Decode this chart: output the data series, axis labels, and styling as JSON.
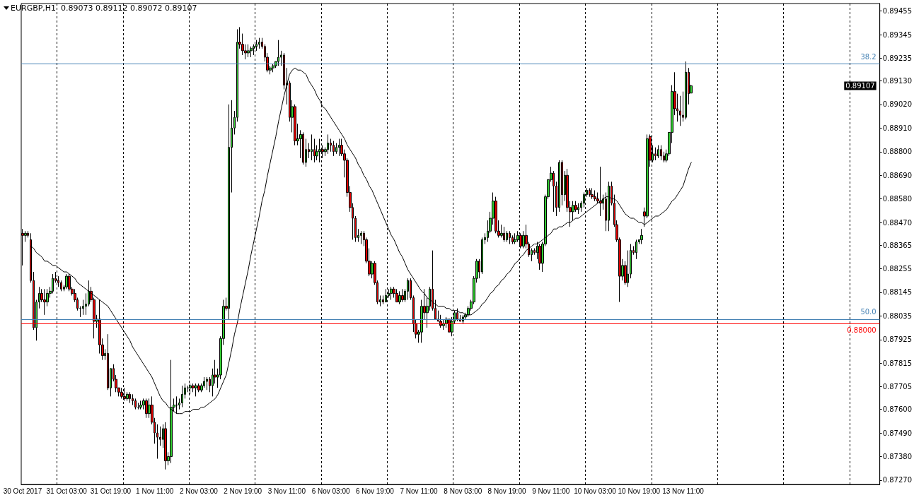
{
  "chart_data": {
    "type": "candlestick",
    "title": "EURGBP,H1  0.89073 0.89112 0.89072 0.89107",
    "categories": [
      "30 Oct 2017",
      null,
      null,
      null,
      null,
      null,
      null,
      null,
      null,
      null,
      null,
      null,
      null,
      null,
      null,
      null,
      "31 Oct 03:00",
      null,
      null,
      null,
      null,
      null,
      null,
      null,
      null,
      null,
      null,
      null,
      null,
      null,
      null,
      null,
      "31 Oct 19:00",
      null,
      null,
      null,
      null,
      null,
      null,
      null,
      null,
      null,
      null,
      null,
      null,
      null,
      null,
      null,
      "1 Nov 11:00",
      null,
      null,
      null,
      null,
      null,
      null,
      null,
      null,
      null,
      null,
      null,
      null,
      null,
      null,
      null,
      "2 Nov 03:00",
      null,
      null,
      null,
      null,
      null,
      null,
      null,
      null,
      null,
      null,
      null,
      null,
      null,
      null,
      null,
      "2 Nov 19:00",
      null,
      null,
      null,
      null,
      null,
      null,
      null,
      null,
      null,
      null,
      null,
      null,
      null,
      null,
      null,
      "3 Nov 11:00",
      null,
      null,
      null,
      null,
      null,
      null,
      null,
      null,
      null,
      null,
      null,
      null,
      null,
      null,
      null,
      "6 Nov 03:00",
      null,
      null,
      null,
      null,
      null,
      null,
      null,
      null,
      null,
      null,
      null,
      null,
      null,
      null,
      null,
      "6 Nov 19:00",
      null,
      null,
      null,
      null,
      null,
      null,
      null,
      null,
      null,
      null,
      null,
      null,
      null,
      null,
      null,
      "7 Nov 11:00",
      null,
      null,
      null,
      null,
      null,
      null,
      null,
      null,
      null,
      null,
      null,
      null,
      null,
      null,
      null,
      "8 Nov 03:00",
      null,
      null,
      null,
      null,
      null,
      null,
      null,
      null,
      null,
      null,
      null,
      null,
      null,
      null,
      null,
      "8 Nov 19:00",
      null,
      null,
      null,
      null,
      null,
      null,
      null,
      null,
      null,
      null,
      null,
      null,
      null,
      null,
      null,
      "9 Nov 11:00",
      null,
      null,
      null,
      null,
      null,
      null,
      null,
      null,
      null,
      null,
      null,
      null,
      null,
      null,
      null,
      "10 Nov 03:00",
      null,
      null,
      null,
      null,
      null,
      null,
      null,
      null,
      null,
      null,
      null,
      null,
      null,
      null,
      null,
      "10 Nov 19:00",
      null,
      null,
      null,
      null,
      null,
      null,
      null,
      null,
      null,
      null,
      null,
      null,
      null,
      null,
      null,
      "13 Nov 11:00",
      null,
      null,
      null
    ],
    "ohlc": [
      [
        0.8842,
        0.8844,
        0.8827,
        0.8841
      ],
      [
        0.8841,
        0.8843,
        0.8838,
        0.8842
      ],
      [
        0.8842,
        0.8843,
        0.884,
        0.8841
      ],
      [
        0.8839,
        0.8842,
        0.8819,
        0.882
      ],
      [
        0.882,
        0.8824,
        0.8797,
        0.8798
      ],
      [
        0.8798,
        0.8811,
        0.8792,
        0.881
      ],
      [
        0.881,
        0.8817,
        0.8807,
        0.8814
      ],
      [
        0.8814,
        0.8816,
        0.881,
        0.8811
      ],
      [
        0.8811,
        0.8816,
        0.8804,
        0.881
      ],
      [
        0.881,
        0.8816,
        0.8808,
        0.8814
      ],
      [
        0.8814,
        0.8817,
        0.8812,
        0.8815
      ],
      [
        0.8815,
        0.8823,
        0.8814,
        0.8821
      ],
      [
        0.8821,
        0.8824,
        0.8819,
        0.882
      ],
      [
        0.882,
        0.8822,
        0.8817,
        0.8819
      ],
      [
        0.8819,
        0.882,
        0.8815,
        0.8816
      ],
      [
        0.8816,
        0.8818,
        0.8815,
        0.8817
      ],
      [
        0.8817,
        0.8823,
        0.8816,
        0.8822
      ],
      [
        0.8822,
        0.8823,
        0.8815,
        0.8816
      ],
      [
        0.8816,
        0.8817,
        0.8813,
        0.8814
      ],
      [
        0.8814,
        0.8816,
        0.881,
        0.8811
      ],
      [
        0.8811,
        0.8812,
        0.8806,
        0.8807
      ],
      [
        0.8807,
        0.8808,
        0.8803,
        0.8807
      ],
      [
        0.8807,
        0.8811,
        0.8804,
        0.8808
      ],
      [
        0.8808,
        0.8814,
        0.8804,
        0.8809
      ],
      [
        0.8809,
        0.882,
        0.8808,
        0.8815
      ],
      [
        0.8815,
        0.8817,
        0.881,
        0.8811
      ],
      [
        0.8811,
        0.8812,
        0.8793,
        0.8801
      ],
      [
        0.8801,
        0.8804,
        0.8798,
        0.8802
      ],
      [
        0.8802,
        0.8811,
        0.8786,
        0.879
      ],
      [
        0.879,
        0.8793,
        0.8783,
        0.8785
      ],
      [
        0.8785,
        0.8788,
        0.8783,
        0.8786
      ],
      [
        0.8786,
        0.8795,
        0.8769,
        0.877
      ],
      [
        0.877,
        0.8779,
        0.8766,
        0.8779
      ],
      [
        0.8779,
        0.8781,
        0.8773,
        0.8774
      ],
      [
        0.8774,
        0.8776,
        0.8768,
        0.877
      ],
      [
        0.877,
        0.877,
        0.8766,
        0.8768
      ],
      [
        0.8768,
        0.877,
        0.8765,
        0.8766
      ],
      [
        0.8766,
        0.877,
        0.8764,
        0.8765
      ],
      [
        0.8765,
        0.8768,
        0.8764,
        0.8767
      ],
      [
        0.8767,
        0.8768,
        0.8763,
        0.8765
      ],
      [
        0.8765,
        0.8767,
        0.8762,
        0.8764
      ],
      [
        0.8764,
        0.8765,
        0.876,
        0.8761
      ],
      [
        0.8761,
        0.8763,
        0.876,
        0.8761
      ],
      [
        0.8761,
        0.8764,
        0.876,
        0.8762
      ],
      [
        0.8762,
        0.8765,
        0.876,
        0.8764
      ],
      [
        0.8764,
        0.8765,
        0.8756,
        0.8758
      ],
      [
        0.8758,
        0.8765,
        0.8756,
        0.8762
      ],
      [
        0.8762,
        0.8766,
        0.8753,
        0.8754
      ],
      [
        0.8754,
        0.8756,
        0.8744,
        0.8749
      ],
      [
        0.8749,
        0.8753,
        0.8737,
        0.8747
      ],
      [
        0.8747,
        0.8752,
        0.8743,
        0.8746
      ],
      [
        0.8746,
        0.8753,
        0.8742,
        0.8751
      ],
      [
        0.8751,
        0.8754,
        0.8732,
        0.8736
      ],
      [
        0.8736,
        0.874,
        0.8734,
        0.8738
      ],
      [
        0.8738,
        0.8783,
        0.8735,
        0.8761
      ],
      [
        0.8761,
        0.8765,
        0.8759,
        0.8762
      ],
      [
        0.8762,
        0.8766,
        0.8758,
        0.8762
      ],
      [
        0.8762,
        0.8765,
        0.876,
        0.8763
      ],
      [
        0.8763,
        0.8771,
        0.8761,
        0.8767
      ],
      [
        0.8767,
        0.8772,
        0.8765,
        0.877
      ],
      [
        0.877,
        0.8771,
        0.8768,
        0.877
      ],
      [
        0.877,
        0.8772,
        0.8767,
        0.8771
      ],
      [
        0.8771,
        0.8772,
        0.8768,
        0.877
      ],
      [
        0.877,
        0.8772,
        0.8766,
        0.8771
      ],
      [
        0.8771,
        0.8772,
        0.8768,
        0.8769
      ],
      [
        0.8769,
        0.8772,
        0.8768,
        0.8771
      ],
      [
        0.8771,
        0.8775,
        0.877,
        0.8773
      ],
      [
        0.8773,
        0.8775,
        0.8769,
        0.8774
      ],
      [
        0.8774,
        0.8775,
        0.8768,
        0.8771
      ],
      [
        0.8771,
        0.8779,
        0.8766,
        0.8776
      ],
      [
        0.8776,
        0.8783,
        0.8772,
        0.8775
      ],
      [
        0.8775,
        0.8779,
        0.877,
        0.8776
      ],
      [
        0.8776,
        0.8794,
        0.8774,
        0.8793
      ],
      [
        0.8793,
        0.8811,
        0.879,
        0.8808
      ],
      [
        0.8808,
        0.8812,
        0.8806,
        0.8807
      ],
      [
        0.8807,
        0.8902,
        0.8802,
        0.8882
      ],
      [
        0.8882,
        0.8904,
        0.8861,
        0.8891
      ],
      [
        0.8891,
        0.8899,
        0.8888,
        0.8896
      ],
      [
        0.8896,
        0.8937,
        0.8894,
        0.8931
      ],
      [
        0.8931,
        0.8938,
        0.8928,
        0.893
      ],
      [
        0.893,
        0.8935,
        0.8925,
        0.8927
      ],
      [
        0.8927,
        0.893,
        0.8923,
        0.8926
      ],
      [
        0.8926,
        0.893,
        0.8924,
        0.8927
      ],
      [
        0.8927,
        0.8929,
        0.8924,
        0.8928
      ],
      [
        0.8928,
        0.893,
        0.8925,
        0.8929
      ],
      [
        0.8929,
        0.8932,
        0.8927,
        0.893
      ],
      [
        0.893,
        0.8933,
        0.8928,
        0.8931
      ],
      [
        0.8931,
        0.8933,
        0.8928,
        0.8929
      ],
      [
        0.8929,
        0.893,
        0.8922,
        0.8924
      ],
      [
        0.8924,
        0.8926,
        0.8917,
        0.8918
      ],
      [
        0.8918,
        0.892,
        0.8916,
        0.8919
      ],
      [
        0.8919,
        0.8921,
        0.8917,
        0.892
      ],
      [
        0.892,
        0.8922,
        0.8919,
        0.8922
      ],
      [
        0.8922,
        0.8932,
        0.892,
        0.8924
      ],
      [
        0.8924,
        0.8927,
        0.892,
        0.8925
      ],
      [
        0.8925,
        0.8926,
        0.8909,
        0.8911
      ],
      [
        0.8911,
        0.8919,
        0.8902,
        0.8912
      ],
      [
        0.8912,
        0.8913,
        0.8894,
        0.8896
      ],
      [
        0.8896,
        0.8904,
        0.8889,
        0.8901
      ],
      [
        0.8901,
        0.8902,
        0.8883,
        0.8885
      ],
      [
        0.8885,
        0.8893,
        0.8883,
        0.8886
      ],
      [
        0.8886,
        0.889,
        0.8877,
        0.8888
      ],
      [
        0.8888,
        0.8889,
        0.8874,
        0.8875
      ],
      [
        0.8875,
        0.8886,
        0.8873,
        0.8881
      ],
      [
        0.8881,
        0.8884,
        0.8877,
        0.888
      ],
      [
        0.888,
        0.8888,
        0.8876,
        0.8881
      ],
      [
        0.8881,
        0.8886,
        0.8875,
        0.8878
      ],
      [
        0.8878,
        0.8883,
        0.8876,
        0.888
      ],
      [
        0.888,
        0.8886,
        0.8875,
        0.8881
      ],
      [
        0.8881,
        0.8883,
        0.8877,
        0.888
      ],
      [
        0.888,
        0.8882,
        0.8878,
        0.8881
      ],
      [
        0.8881,
        0.8888,
        0.8879,
        0.8884
      ],
      [
        0.8884,
        0.8886,
        0.888,
        0.8883
      ],
      [
        0.8883,
        0.8885,
        0.8878,
        0.888
      ],
      [
        0.888,
        0.8884,
        0.8879,
        0.8882
      ],
      [
        0.8882,
        0.8886,
        0.8878,
        0.8883
      ],
      [
        0.8883,
        0.8886,
        0.8878,
        0.8879
      ],
      [
        0.8879,
        0.8881,
        0.8868,
        0.8876
      ],
      [
        0.8876,
        0.8877,
        0.8859,
        0.8861
      ],
      [
        0.8861,
        0.8864,
        0.8852,
        0.8854
      ],
      [
        0.8854,
        0.8856,
        0.8839,
        0.8849
      ],
      [
        0.8849,
        0.885,
        0.8838,
        0.884
      ],
      [
        0.884,
        0.8844,
        0.8838,
        0.8841
      ],
      [
        0.8841,
        0.8843,
        0.8837,
        0.8842
      ],
      [
        0.8842,
        0.8843,
        0.8836,
        0.8839
      ],
      [
        0.8839,
        0.884,
        0.8828,
        0.8829
      ],
      [
        0.8829,
        0.8835,
        0.8822,
        0.8823
      ],
      [
        0.8823,
        0.8829,
        0.8821,
        0.8828
      ],
      [
        0.8828,
        0.8829,
        0.8818,
        0.8819
      ],
      [
        0.8819,
        0.882,
        0.8809,
        0.881
      ],
      [
        0.881,
        0.8813,
        0.8808,
        0.8811
      ],
      [
        0.8811,
        0.8813,
        0.8809,
        0.881
      ],
      [
        0.881,
        0.8816,
        0.881,
        0.8813
      ],
      [
        0.8813,
        0.8816,
        0.8812,
        0.8814
      ],
      [
        0.8814,
        0.8817,
        0.8811,
        0.8816
      ],
      [
        0.8816,
        0.8817,
        0.8812,
        0.8814
      ],
      [
        0.8814,
        0.8816,
        0.881,
        0.881
      ],
      [
        0.881,
        0.8815,
        0.8809,
        0.8813
      ],
      [
        0.8813,
        0.8816,
        0.881,
        0.8811
      ],
      [
        0.8811,
        0.8816,
        0.881,
        0.8815
      ],
      [
        0.8815,
        0.8821,
        0.8811,
        0.882
      ],
      [
        0.882,
        0.8821,
        0.8811,
        0.8812
      ],
      [
        0.8812,
        0.8813,
        0.8796,
        0.88
      ],
      [
        0.88,
        0.8802,
        0.8793,
        0.8795
      ],
      [
        0.8795,
        0.8797,
        0.8791,
        0.8796
      ],
      [
        0.8796,
        0.8811,
        0.8791,
        0.8808
      ],
      [
        0.8808,
        0.8816,
        0.8802,
        0.8805
      ],
      [
        0.8805,
        0.8812,
        0.8798,
        0.8808
      ],
      [
        0.8808,
        0.8817,
        0.8806,
        0.8816
      ],
      [
        0.8816,
        0.8834,
        0.8806,
        0.8807
      ],
      [
        0.8807,
        0.8811,
        0.8802,
        0.8802
      ],
      [
        0.8802,
        0.8806,
        0.8801,
        0.8801
      ],
      [
        0.8801,
        0.8804,
        0.8798,
        0.8799
      ],
      [
        0.8799,
        0.8802,
        0.8797,
        0.88
      ],
      [
        0.88,
        0.8803,
        0.8798,
        0.8802
      ],
      [
        0.8802,
        0.8802,
        0.8796,
        0.8796
      ],
      [
        0.8796,
        0.8803,
        0.8794,
        0.8801
      ],
      [
        0.8801,
        0.8806,
        0.88,
        0.8805
      ],
      [
        0.8805,
        0.8807,
        0.8801,
        0.8802
      ],
      [
        0.8802,
        0.8804,
        0.8801,
        0.8801
      ],
      [
        0.8801,
        0.8804,
        0.88,
        0.8803
      ],
      [
        0.8803,
        0.8805,
        0.8802,
        0.8804
      ],
      [
        0.8804,
        0.8808,
        0.8803,
        0.8807
      ],
      [
        0.8807,
        0.8811,
        0.8806,
        0.881
      ],
      [
        0.881,
        0.8822,
        0.8809,
        0.8821
      ],
      [
        0.8821,
        0.883,
        0.8819,
        0.8829
      ],
      [
        0.8829,
        0.883,
        0.8821,
        0.8824
      ],
      [
        0.8824,
        0.884,
        0.8823,
        0.8839
      ],
      [
        0.8839,
        0.8842,
        0.8837,
        0.884
      ],
      [
        0.884,
        0.8848,
        0.8838,
        0.8843
      ],
      [
        0.8843,
        0.8852,
        0.8842,
        0.8849
      ],
      [
        0.8849,
        0.8861,
        0.8846,
        0.8857
      ],
      [
        0.8857,
        0.8859,
        0.8842,
        0.8843
      ],
      [
        0.8843,
        0.8848,
        0.884,
        0.8841
      ],
      [
        0.8841,
        0.8846,
        0.884,
        0.8842
      ],
      [
        0.8842,
        0.8845,
        0.8838,
        0.8839
      ],
      [
        0.8839,
        0.8843,
        0.8838,
        0.8842
      ],
      [
        0.8842,
        0.8843,
        0.8837,
        0.884
      ],
      [
        0.884,
        0.8841,
        0.8837,
        0.8838
      ],
      [
        0.8838,
        0.8842,
        0.8837,
        0.8839
      ],
      [
        0.8839,
        0.8843,
        0.8838,
        0.8841
      ],
      [
        0.8841,
        0.8842,
        0.8835,
        0.8836
      ],
      [
        0.8836,
        0.8843,
        0.8835,
        0.8841
      ],
      [
        0.8841,
        0.8846,
        0.8835,
        0.8837
      ],
      [
        0.8837,
        0.8838,
        0.8831,
        0.8832
      ],
      [
        0.8832,
        0.8835,
        0.8829,
        0.8834
      ],
      [
        0.8834,
        0.8835,
        0.8832,
        0.8833
      ],
      [
        0.8833,
        0.8838,
        0.883,
        0.8836
      ],
      [
        0.8836,
        0.8837,
        0.8825,
        0.8828
      ],
      [
        0.8828,
        0.8838,
        0.8824,
        0.8837
      ],
      [
        0.8837,
        0.886,
        0.8836,
        0.8859
      ],
      [
        0.8859,
        0.8867,
        0.8858,
        0.8867
      ],
      [
        0.8867,
        0.8873,
        0.8866,
        0.887
      ],
      [
        0.887,
        0.8871,
        0.8852,
        0.8864
      ],
      [
        0.8864,
        0.8866,
        0.885,
        0.8854
      ],
      [
        0.8854,
        0.8876,
        0.8852,
        0.8875
      ],
      [
        0.8875,
        0.8876,
        0.8855,
        0.886
      ],
      [
        0.886,
        0.8871,
        0.8857,
        0.8869
      ],
      [
        0.8869,
        0.8872,
        0.8852,
        0.8854
      ],
      [
        0.8854,
        0.8857,
        0.8845,
        0.8852
      ],
      [
        0.8852,
        0.8857,
        0.8848,
        0.8855
      ],
      [
        0.8855,
        0.8857,
        0.8852,
        0.8853
      ],
      [
        0.8853,
        0.8856,
        0.8851,
        0.8854
      ],
      [
        0.8854,
        0.8857,
        0.8852,
        0.8856
      ],
      [
        0.8856,
        0.8861,
        0.8854,
        0.886
      ],
      [
        0.886,
        0.8863,
        0.8859,
        0.8862
      ],
      [
        0.8862,
        0.8863,
        0.8859,
        0.886
      ],
      [
        0.886,
        0.8863,
        0.8858,
        0.8859
      ],
      [
        0.8859,
        0.8862,
        0.8857,
        0.8858
      ],
      [
        0.8858,
        0.8861,
        0.8856,
        0.8857
      ],
      [
        0.8857,
        0.8873,
        0.885,
        0.8856
      ],
      [
        0.8856,
        0.886,
        0.8853,
        0.8858
      ],
      [
        0.8858,
        0.8861,
        0.8843,
        0.8848
      ],
      [
        0.8848,
        0.8866,
        0.8843,
        0.8864
      ],
      [
        0.8864,
        0.8866,
        0.8855,
        0.8856
      ],
      [
        0.8856,
        0.886,
        0.8845,
        0.8846
      ],
      [
        0.8846,
        0.8848,
        0.8838,
        0.8839
      ],
      [
        0.8839,
        0.884,
        0.881,
        0.8822
      ],
      [
        0.8822,
        0.883,
        0.882,
        0.8827
      ],
      [
        0.8827,
        0.8829,
        0.8818,
        0.8819
      ],
      [
        0.8819,
        0.8834,
        0.8817,
        0.8823
      ],
      [
        0.8823,
        0.8837,
        0.8821,
        0.8834
      ],
      [
        0.8834,
        0.8836,
        0.8832,
        0.8833
      ],
      [
        0.8833,
        0.8839,
        0.883,
        0.8838
      ],
      [
        0.8838,
        0.8839,
        0.8837,
        0.8839
      ],
      [
        0.8839,
        0.8844,
        0.8837,
        0.8841
      ],
      [
        0.8852,
        0.8854,
        0.8845,
        0.885
      ],
      [
        0.885,
        0.8888,
        0.8849,
        0.8886
      ],
      [
        0.8887,
        0.8888,
        0.8873,
        0.8876
      ],
      [
        0.8876,
        0.8883,
        0.8875,
        0.8879
      ],
      [
        0.8879,
        0.8882,
        0.8876,
        0.8878
      ],
      [
        0.8878,
        0.8883,
        0.8877,
        0.8881
      ],
      [
        0.8881,
        0.8883,
        0.8876,
        0.8878
      ],
      [
        0.8878,
        0.888,
        0.8875,
        0.8876
      ],
      [
        0.8876,
        0.8881,
        0.8875,
        0.8879
      ],
      [
        0.8879,
        0.8889,
        0.8878,
        0.8889
      ],
      [
        0.8889,
        0.8911,
        0.8884,
        0.8908
      ],
      [
        0.8908,
        0.8917,
        0.8897,
        0.89
      ],
      [
        0.89,
        0.8907,
        0.8894,
        0.8899
      ],
      [
        0.8899,
        0.8906,
        0.8892,
        0.8897
      ],
      [
        0.8897,
        0.8908,
        0.8894,
        0.8896
      ],
      [
        0.8896,
        0.8922,
        0.8895,
        0.8917
      ],
      [
        0.8917,
        0.8919,
        0.8902,
        0.8907
      ],
      [
        0.89073,
        0.89112,
        0.89072,
        0.89107
      ]
    ],
    "series": [
      {
        "type": "line",
        "color": "#000000",
        "values": [
          null,
          null,
          null,
          0.8836,
          0.8835,
          0.8833,
          0.8832,
          0.8831,
          0.8829,
          0.8829,
          0.8828,
          0.8827,
          0.8827,
          0.8826,
          0.8825,
          0.8824,
          0.8824,
          0.8823,
          0.8822,
          0.8821,
          0.8819,
          0.8818,
          0.8817,
          0.8816,
          0.8815,
          0.8814,
          0.8813,
          0.8812,
          0.8811,
          0.881,
          0.8809,
          0.8808,
          0.8806,
          0.8804,
          0.8802,
          0.88,
          0.8798,
          0.8796,
          0.8794,
          0.8792,
          0.8789,
          0.8787,
          0.8785,
          0.8783,
          0.8781,
          0.8779,
          0.8777,
          0.8775,
          0.8772,
          0.8769,
          0.8766,
          0.8764,
          0.8763,
          0.8761,
          0.876,
          0.8759,
          0.8758,
          0.8758,
          0.8758,
          0.8759,
          0.8759,
          0.8759,
          0.876,
          0.876,
          0.876,
          0.8761,
          0.8761,
          0.8762,
          0.8763,
          0.8764,
          0.8765,
          0.8767,
          0.877,
          0.8773,
          0.8776,
          0.8782,
          0.8788,
          0.8795,
          0.88,
          0.8807,
          0.8813,
          0.8819,
          0.8825,
          0.8832,
          0.8838,
          0.8844,
          0.885,
          0.8857,
          0.8862,
          0.8869,
          0.8875,
          0.8881,
          0.8887,
          0.8894,
          0.89,
          0.8906,
          0.8911,
          0.8916,
          0.8918,
          0.8919,
          0.8918,
          0.8918,
          0.8917,
          0.8916,
          0.8913,
          0.8911,
          0.8909,
          0.8906,
          0.8904,
          0.8901,
          0.89,
          0.8898,
          0.8896,
          0.8894,
          0.8892,
          0.889,
          0.8888,
          0.8886,
          0.8883,
          0.8881,
          0.8879,
          0.8877,
          0.8874,
          0.8872,
          0.8869,
          0.8867,
          0.8864,
          0.8862,
          0.8859,
          0.8856,
          0.8853,
          0.885,
          0.8847,
          0.8844,
          0.8841,
          0.8839,
          0.8836,
          0.8833,
          0.8831,
          0.8828,
          0.8825,
          0.8823,
          0.8821,
          0.8819,
          0.8817,
          0.8815,
          0.8814,
          0.8812,
          0.8811,
          0.881,
          0.8809,
          0.8808,
          0.8808,
          0.8808,
          0.8807,
          0.8807,
          0.8806,
          0.8806,
          0.8806,
          0.8805,
          0.8805,
          0.8804,
          0.8804,
          0.8804,
          0.8805,
          0.8806,
          0.8807,
          0.8809,
          0.881,
          0.8812,
          0.8814,
          0.8815,
          0.8817,
          0.8818,
          0.882,
          0.8821,
          0.8823,
          0.8824,
          0.8826,
          0.8828,
          0.8829,
          0.8831,
          0.8832,
          0.8834,
          0.8835,
          0.8836,
          0.8837,
          0.8837,
          0.8838,
          0.8839,
          0.884,
          0.8841,
          0.8842,
          0.8844,
          0.8844,
          0.8845,
          0.8845,
          0.8846,
          0.8847,
          0.8847,
          0.8848,
          0.8849,
          0.8849,
          0.885,
          0.8851,
          0.8852,
          0.8853,
          0.8854,
          0.8855,
          0.8856,
          0.8857,
          0.8858,
          0.8859,
          0.8859,
          0.8858,
          0.8858,
          0.8857,
          0.8855,
          0.8853,
          0.8851,
          0.885,
          0.8849,
          0.8849,
          0.8848,
          0.8847,
          0.8847,
          0.8846,
          0.8847,
          0.8848,
          0.8849,
          0.885,
          0.885,
          0.8851,
          0.8852,
          0.8853,
          0.8855,
          0.8857,
          0.8858,
          0.886,
          0.8862,
          0.8864,
          0.8868,
          0.8872,
          0.8875
        ]
      }
    ],
    "ylim": [
      0.8725,
      0.8949
    ],
    "yticks": [
      0.89455,
      0.89345,
      0.89235,
      {
        "value": 0.8913,
        "label": "0.89130"
      },
      {
        "value": 0.8902,
        "label": "0.89020"
      },
      {
        "value": 0.8891,
        "label": "0.88910"
      },
      {
        "value": 0.888,
        "label": "0.88800"
      },
      {
        "value": 0.8869,
        "label": "0.88690"
      },
      {
        "value": 0.8858,
        "label": "0.88580"
      },
      {
        "value": 0.8847,
        "label": "0.88470"
      },
      0.88365,
      0.88255,
      0.88145,
      0.88035,
      0.87925,
      0.87815,
      0.87705,
      {
        "value": 0.876,
        "label": "0.87600"
      },
      {
        "value": 0.8749,
        "label": "0.87490"
      },
      {
        "value": 0.8738,
        "label": "0.87380"
      },
      {
        "value": 0.8727,
        "label": "0.87270"
      }
    ],
    "ref_lines": [
      {
        "axis": "y",
        "value": 0.8921,
        "color": "#4682b4"
      },
      {
        "axis": "y",
        "value": 0.8802,
        "color": "#4682b4"
      },
      {
        "axis": "y",
        "value": 0.88,
        "label": "0.88000",
        "color": "#ff0000"
      }
    ],
    "annotations": [
      {
        "text": "38.2",
        "y": 0.8921
      },
      {
        "text": "50.0",
        "y": 0.8802
      },
      "0.89107"
    ],
    "grid": "x"
  }
}
